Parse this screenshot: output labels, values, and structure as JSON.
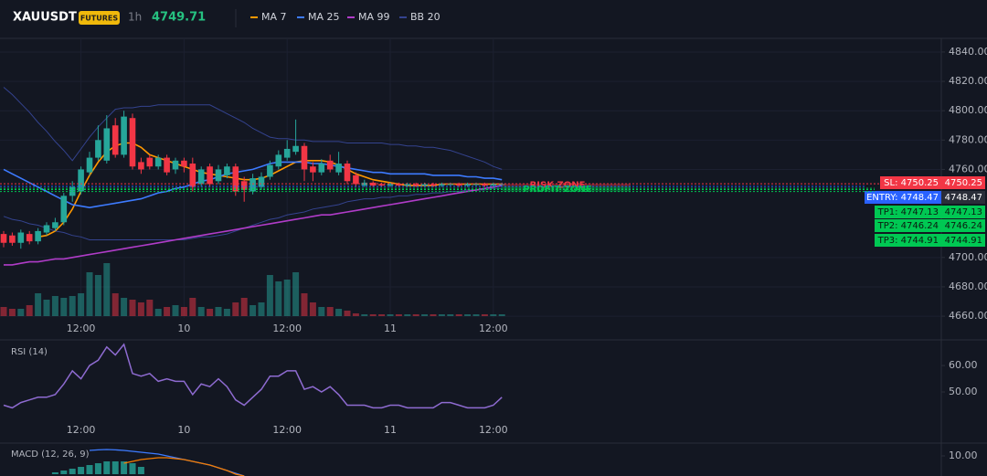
{
  "chart_data": [
    {
      "type": "candlestick",
      "title": "XAUUSDT",
      "badge": "FUTURES",
      "interval": "1h",
      "last_price": 4749.71,
      "categories": [
        null,
        null,
        null,
        null,
        null,
        null,
        null,
        null,
        null,
        "12:00",
        null,
        null,
        null,
        null,
        null,
        null,
        null,
        null,
        null,
        null,
        null,
        "10",
        null,
        null,
        null,
        null,
        null,
        null,
        null,
        null,
        null,
        null,
        null,
        "12:00",
        null,
        null,
        null,
        null,
        null,
        null,
        null,
        null,
        null,
        null,
        null,
        "11",
        null,
        null,
        null,
        null,
        null,
        null,
        null,
        null,
        null,
        null,
        null,
        "12:00",
        null
      ],
      "open": [
        4716,
        4715,
        4710,
        4716,
        4711,
        4717,
        4720,
        4724,
        4742,
        4745,
        4758,
        4768,
        4766,
        4790,
        4770,
        4795,
        4765,
        4768,
        4762,
        4768,
        4760,
        4766,
        4764,
        4750,
        4762,
        4752,
        4756,
        4762,
        4752,
        4745,
        4748,
        4755,
        4762,
        4768,
        4772,
        4776,
        4762,
        4758,
        4766,
        4758,
        4764,
        4756,
        4749,
        4751,
        4750,
        4749,
        4750,
        4749,
        4750,
        4749,
        4750,
        4749,
        4750,
        4750,
        4749,
        4750,
        4750,
        4749,
        4750
      ],
      "high": [
        4718,
        4717,
        4719,
        4718,
        4720,
        4724,
        4727,
        4744,
        4752,
        4762,
        4772,
        4790,
        4797,
        4795,
        4800,
        4798,
        4768,
        4770,
        4770,
        4770,
        4768,
        4768,
        4768,
        4762,
        4764,
        4763,
        4764,
        4764,
        4755,
        4757,
        4758,
        4766,
        4773,
        4780,
        4794,
        4778,
        4765,
        4767,
        4770,
        4772,
        4766,
        4758,
        4753,
        4752,
        4751,
        4751,
        4751,
        4751,
        4751,
        4751,
        4751,
        4751,
        4751,
        4751,
        4751,
        4751,
        4751,
        4751,
        4751
      ],
      "low": [
        4707,
        4708,
        4706,
        4709,
        4709,
        4715,
        4718,
        4722,
        4738,
        4743,
        4756,
        4766,
        4764,
        4768,
        4768,
        4760,
        4757,
        4760,
        4760,
        4756,
        4757,
        4758,
        4745,
        4748,
        4748,
        4750,
        4754,
        4742,
        4738,
        4743,
        4746,
        4753,
        4760,
        4766,
        4770,
        4752,
        4752,
        4756,
        4758,
        4756,
        4750,
        4748,
        4748,
        4748,
        4748,
        4748,
        4748,
        4748,
        4748,
        4748,
        4748,
        4748,
        4749,
        4748,
        4748,
        4749,
        4748,
        4748,
        4749
      ],
      "close": [
        4710,
        4710,
        4717,
        4711,
        4718,
        4722,
        4724,
        4742,
        4748,
        4760,
        4768,
        4780,
        4788,
        4770,
        4796,
        4762,
        4760,
        4762,
        4768,
        4758,
        4766,
        4762,
        4748,
        4760,
        4750,
        4760,
        4762,
        4745,
        4746,
        4754,
        4755,
        4763,
        4770,
        4774,
        4776,
        4760,
        4758,
        4764,
        4760,
        4764,
        4752,
        4750,
        4751,
        4749,
        4749,
        4750,
        4749,
        4750,
        4749,
        4750,
        4749,
        4750,
        4750,
        4749,
        4750,
        4750,
        4749,
        4750,
        4750
      ],
      "up_color": "#26a69a",
      "down_color": "#f23645",
      "volume": [
        10,
        8,
        8,
        12,
        25,
        18,
        22,
        20,
        22,
        25,
        48,
        45,
        58,
        25,
        20,
        18,
        15,
        18,
        8,
        10,
        12,
        10,
        20,
        10,
        8,
        10,
        8,
        15,
        20,
        12,
        15,
        45,
        38,
        40,
        48,
        25,
        15,
        10,
        10,
        8,
        6,
        3,
        2,
        2,
        2,
        2,
        2,
        2,
        2,
        2,
        2,
        2,
        2,
        2,
        2,
        2,
        2,
        2,
        2
      ],
      "series": [
        {
          "name": "MA 7",
          "color": "#ff9800",
          "values": [
            null,
            null,
            null,
            null,
            4714,
            4715,
            4718,
            4724,
            4733,
            4745,
            4756,
            4765,
            4772,
            4776,
            4778,
            4778,
            4775,
            4770,
            4768,
            4766,
            4764,
            4762,
            4760,
            4758,
            4757,
            4756,
            4755,
            4754,
            4753,
            4753,
            4754,
            4756,
            4759,
            4762,
            4765,
            4766,
            4766,
            4766,
            4765,
            4763,
            4760,
            4757,
            4755,
            4753,
            4752,
            4751,
            4750,
            4749,
            4749,
            4749,
            4749,
            4750,
            4750,
            4750,
            4750,
            4750,
            4750,
            4750,
            4750
          ]
        },
        {
          "name": "MA 25",
          "color": "#3d7bff",
          "values": [
            4760,
            4757,
            4754,
            4751,
            4748,
            4745,
            4742,
            4739,
            4736,
            4735,
            4734,
            4735,
            4736,
            4737,
            4738,
            4739,
            4740,
            4742,
            4744,
            4745,
            4747,
            4748,
            4750,
            4752,
            4753,
            4755,
            4757,
            4758,
            4759,
            4760,
            4762,
            4764,
            4765,
            4765,
            4765,
            4765,
            4764,
            4764,
            4763,
            4762,
            4761,
            4760,
            4759,
            4758,
            4758,
            4757,
            4757,
            4757,
            4757,
            4757,
            4756,
            4756,
            4756,
            4756,
            4755,
            4755,
            4754,
            4754,
            4753
          ]
        },
        {
          "name": "MA 99",
          "color": "#b03cc8",
          "values": [
            4695,
            4695,
            4696,
            4697,
            4697,
            4698,
            4699,
            4699,
            4700,
            4701,
            4702,
            4703,
            4704,
            4705,
            4706,
            4707,
            4708,
            4709,
            4710,
            4711,
            4712,
            4713,
            4714,
            4715,
            4716,
            4717,
            4718,
            4719,
            4720,
            4721,
            4722,
            4723,
            4724,
            4725,
            4726,
            4727,
            4728,
            4729,
            4729,
            4730,
            4731,
            4732,
            4733,
            4734,
            4735,
            4736,
            4737,
            4738,
            4739,
            4740,
            4741,
            4742,
            4743,
            4744,
            4745,
            4746,
            4747,
            4748,
            4749
          ]
        },
        {
          "name": "BB 20",
          "color": "#34438f",
          "upper": [
            4816,
            4811,
            4805,
            4799,
            4792,
            4786,
            4779,
            4773,
            4766,
            4774,
            4782,
            4789,
            4795,
            4801,
            4802,
            4802,
            4803,
            4803,
            4804,
            4804,
            4804,
            4804,
            4804,
            4804,
            4804,
            4801,
            4798,
            4795,
            4792,
            4788,
            4785,
            4782,
            4781,
            4781,
            4780,
            4780,
            4779,
            4779,
            4779,
            4779,
            4778,
            4778,
            4778,
            4778,
            4778,
            4777,
            4777,
            4776,
            4776,
            4775,
            4775,
            4774,
            4773,
            4771,
            4769,
            4767,
            4765,
            4762,
            4760
          ],
          "lower": [
            4728,
            4726,
            4725,
            4723,
            4722,
            4720,
            4718,
            4717,
            4715,
            4714,
            4712,
            4712,
            4712,
            4712,
            4712,
            4712,
            4712,
            4712,
            4712,
            4712,
            4712,
            4712,
            4713,
            4714,
            4714,
            4715,
            4716,
            4718,
            4720,
            4722,
            4724,
            4726,
            4727,
            4729,
            4730,
            4731,
            4733,
            4734,
            4735,
            4736,
            4738,
            4739,
            4740,
            4740,
            4741,
            4741,
            4742,
            4742,
            4743,
            4743,
            4744,
            4744,
            4745,
            4745,
            4746,
            4746,
            4746,
            4747,
            4747
          ]
        }
      ],
      "levels": [
        {
          "label": "SL: 4750.25",
          "value": 4750.25,
          "color": "#f23645"
        },
        {
          "label": "ENTRY: 4748.47",
          "value": 4748.47,
          "color": "#2962ff"
        },
        {
          "label": "TP1: 4747.13",
          "value": 4747.13,
          "color": "#00c853"
        },
        {
          "label": "TP2: 4746.24",
          "value": 4746.24,
          "color": "#00c853"
        },
        {
          "label": "TP3: 4744.91",
          "value": 4744.91,
          "color": "#00c853"
        }
      ],
      "zones": [
        {
          "label": "RISK ZONE",
          "from": 4750.25,
          "to": 4748.47,
          "color": "#f23645"
        },
        {
          "label": "PROFIT ZONE",
          "from": 4748.47,
          "to": 4744.91,
          "color": "#00c853"
        }
      ],
      "ylim": [
        4658.8,
        4849.3
      ],
      "yticks": [
        {
          "value": 4660,
          "label": "4660.00"
        },
        {
          "value": 4680,
          "label": "4680.00"
        },
        {
          "value": 4700,
          "label": "4700.00"
        },
        {
          "value": 4760,
          "label": "4760.00"
        },
        {
          "value": 4780,
          "label": "4780.00"
        },
        {
          "value": 4800,
          "label": "4800.00"
        },
        {
          "value": 4820,
          "label": "4820.00"
        },
        {
          "value": 4840,
          "label": "4840.00"
        }
      ],
      "grid": true
    },
    {
      "type": "line",
      "title": "RSI (14)",
      "color": "#8e6bd1",
      "values": [
        45,
        44,
        46,
        47,
        48,
        48,
        49,
        53,
        58,
        55,
        60,
        62,
        67,
        64,
        68,
        57,
        56,
        57,
        54,
        55,
        54,
        54,
        49,
        53,
        52,
        55,
        52,
        47,
        45,
        48,
        51,
        56,
        56,
        58,
        58,
        51,
        52,
        50,
        52,
        49,
        45,
        45,
        45,
        44,
        44,
        45,
        45,
        44,
        44,
        44,
        44,
        46,
        46,
        45,
        44,
        44,
        44,
        45,
        48
      ],
      "ylim": [
        39.3,
        69.7
      ],
      "yticks": [
        {
          "value": 50,
          "label": "50.00"
        },
        {
          "value": 60,
          "label": "60.00"
        }
      ]
    },
    {
      "type": "macd",
      "title": "MACD (12, 26, 9)",
      "histogram_color": "#26a69a",
      "histogram": [
        null,
        null,
        null,
        null,
        null,
        null,
        1,
        2,
        3,
        4,
        5,
        6,
        7,
        7,
        7,
        6,
        4,
        null,
        null,
        null,
        null,
        null,
        null,
        null,
        null,
        null,
        null,
        null,
        null,
        null,
        null,
        null,
        null,
        null,
        null,
        null,
        null,
        null,
        null,
        null,
        null,
        null,
        null,
        null,
        null,
        null,
        null,
        null,
        null,
        null,
        null,
        null,
        null,
        null,
        null,
        null,
        null,
        null,
        null
      ],
      "series": [
        {
          "color": "#3d7bff",
          "values": [
            null,
            null,
            null,
            null,
            null,
            null,
            null,
            null,
            null,
            null,
            13,
            13.3,
            13.5,
            13.3,
            13,
            12.5,
            12,
            11.5,
            11,
            10,
            9,
            8,
            7,
            6,
            5,
            3.5,
            2,
            0.5,
            -1,
            null,
            null,
            null,
            null,
            null,
            null,
            null,
            null,
            null,
            null,
            null,
            null,
            null,
            null,
            null,
            null,
            null,
            null,
            null,
            null,
            null,
            null,
            null,
            null,
            null,
            null,
            null,
            null,
            null,
            null
          ]
        },
        {
          "color": "#f57c00",
          "values": [
            null,
            null,
            null,
            null,
            null,
            null,
            null,
            null,
            null,
            null,
            null,
            null,
            null,
            null,
            6,
            7,
            8,
            8.5,
            9,
            9,
            8.5,
            8,
            7,
            6,
            5,
            3.5,
            2,
            0,
            -1,
            null,
            null,
            null,
            null,
            null,
            null,
            null,
            null,
            null,
            null,
            null,
            null,
            null,
            null,
            null,
            null,
            null,
            null,
            null,
            null,
            null,
            null,
            null,
            null,
            null,
            null,
            null,
            null,
            null,
            null
          ]
        }
      ],
      "ylim": [
        -1,
        17
      ],
      "yticks": [
        {
          "value": 10,
          "label": "10.00"
        }
      ]
    }
  ]
}
